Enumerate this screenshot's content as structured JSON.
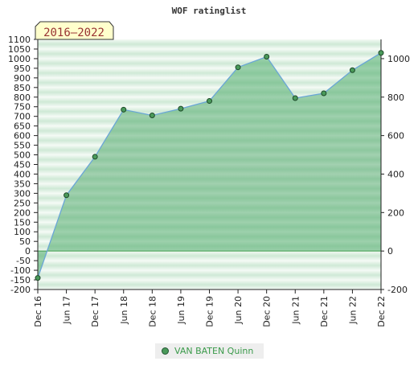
{
  "chart_data": {
    "type": "area",
    "title": "WOF ratinglist",
    "period_label": "2016–2022",
    "categories": [
      "Dec 16",
      "Jun 17",
      "Dec 17",
      "Jun 18",
      "Dec 18",
      "Jun 19",
      "Dec 19",
      "Jun 20",
      "Dec 20",
      "Jun 21",
      "Dec 21",
      "Jun 22",
      "Dec 22"
    ],
    "series": [
      {
        "name": "VAN BATEN Quinn",
        "values": [
          -140,
          290,
          490,
          735,
          705,
          740,
          780,
          955,
          1010,
          795,
          820,
          940,
          1030
        ]
      }
    ],
    "ylim": [
      -200,
      1100
    ],
    "y_ticks_left": [
      1100,
      1050,
      1000,
      950,
      900,
      850,
      800,
      750,
      700,
      650,
      600,
      550,
      500,
      450,
      400,
      350,
      300,
      250,
      200,
      150,
      100,
      50,
      0,
      -50,
      -100,
      -150,
      -200
    ],
    "y_ticks_right": [
      1000,
      800,
      600,
      400,
      200,
      0,
      -200
    ],
    "grid": true,
    "legend_position": "bottom",
    "colors": {
      "fill": "#5fb87a",
      "line": "#6aa6d6",
      "marker": "#4a9a5a",
      "period_box": "#ffffcc",
      "period_text": "#993333"
    }
  }
}
